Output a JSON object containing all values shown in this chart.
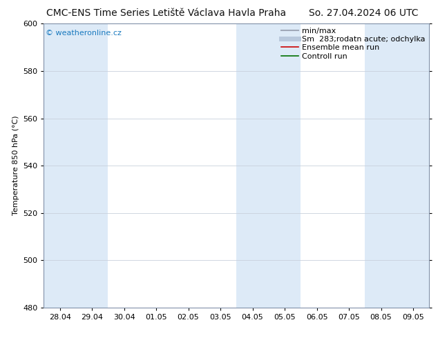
{
  "title_left": "CMC-ENS Time Series Letiště Václava Havla Praha",
  "title_right": "So. 27.04.2024 06 UTC",
  "ylabel": "Temperature 850 hPa (°C)",
  "ylim": [
    480,
    600
  ],
  "yticks": [
    480,
    500,
    520,
    540,
    560,
    580,
    600
  ],
  "x_labels": [
    "28.04",
    "29.04",
    "30.04",
    "01.05",
    "02.05",
    "03.05",
    "04.05",
    "05.05",
    "06.05",
    "07.05",
    "08.05",
    "09.05"
  ],
  "band_indices": [
    0,
    1,
    6,
    7,
    10,
    11
  ],
  "band_color": "#ddeaf7",
  "bg_color": "#ffffff",
  "watermark": "© weatheronline.cz",
  "watermark_color": "#1a7abf",
  "legend_entries": [
    {
      "label": "min/max",
      "color": "#a0a8b8",
      "lw": 1.5
    },
    {
      "label": "Sm  283;rodatn acute; odchylka",
      "color": "#b8c8dc",
      "lw": 5
    },
    {
      "label": "Ensemble mean run",
      "color": "#cc0000",
      "lw": 1.2
    },
    {
      "label": "Controll run",
      "color": "#007000",
      "lw": 1.2
    }
  ],
  "grid_color": "#c8d0dc",
  "spine_color": "#8090a8",
  "title_fontsize": 10,
  "axis_label_fontsize": 8,
  "tick_fontsize": 8,
  "legend_fontsize": 8
}
